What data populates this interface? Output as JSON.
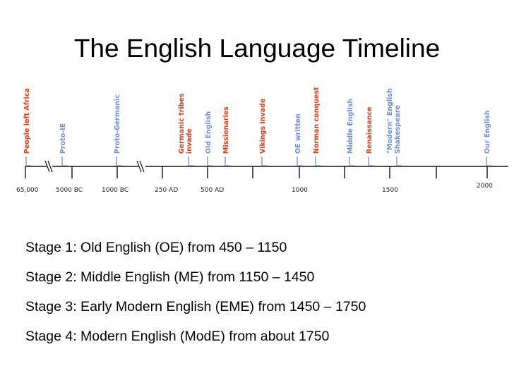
{
  "title": "The English Language Timeline",
  "timeline": {
    "colors": {
      "event_label": "#d2421e",
      "tick": "#6f8fd2",
      "axis": "#111111"
    },
    "axis_labels": [
      {
        "text": "65,000"
      },
      {
        "text": "5000 BC"
      },
      {
        "text": "1000 BC"
      },
      {
        "text": "250 AD"
      },
      {
        "text": "500 AD"
      },
      {
        "text": "1000"
      },
      {
        "text": "1500"
      },
      {
        "text": "2000"
      }
    ],
    "events": [
      {
        "name": "people-left-africa",
        "lines": [
          "People left Africa"
        ],
        "color": "#d2421e"
      },
      {
        "name": "proto-ie",
        "lines": [
          "Proto-IE"
        ],
        "color": "#6f8fd2"
      },
      {
        "name": "proto-germanic",
        "lines": [
          "Proto-Germanic"
        ],
        "color": "#6f8fd2"
      },
      {
        "name": "germanic-tribes-invade",
        "lines": [
          "Germanic tribes",
          "invade"
        ],
        "color": "#d2421e"
      },
      {
        "name": "old-english",
        "lines": [
          "Old English"
        ],
        "color": "#6f8fd2"
      },
      {
        "name": "missionaries",
        "lines": [
          "Missionaries"
        ],
        "color": "#d2421e"
      },
      {
        "name": "vikings-invade",
        "lines": [
          "Vikings invade"
        ],
        "color": "#d2421e"
      },
      {
        "name": "oe-written",
        "lines": [
          "OE written"
        ],
        "color": "#6f8fd2"
      },
      {
        "name": "norman-conquest",
        "lines": [
          "Norman conquest"
        ],
        "color": "#d2421e"
      },
      {
        "name": "middle-english",
        "lines": [
          "Middle English"
        ],
        "color": "#6f8fd2"
      },
      {
        "name": "renaissance",
        "lines": [
          "Renaissance"
        ],
        "color": "#d2421e"
      },
      {
        "name": "modern-english-shakespeare",
        "lines": [
          "\"Modern\" English",
          "Shakespeare"
        ],
        "color": "#6f8fd2"
      },
      {
        "name": "our-english",
        "lines": [
          "Our English"
        ],
        "color": "#6f8fd2"
      }
    ]
  },
  "stages": [
    "Stage 1: Old English (OE) from 450 – 1150",
    "Stage 2: Middle English (ME) from 1150 – 1450",
    "Stage 3: Early Modern English (EME) from 1450 – 1750",
    "Stage 4: Modern English (ModE) from about 1750"
  ]
}
